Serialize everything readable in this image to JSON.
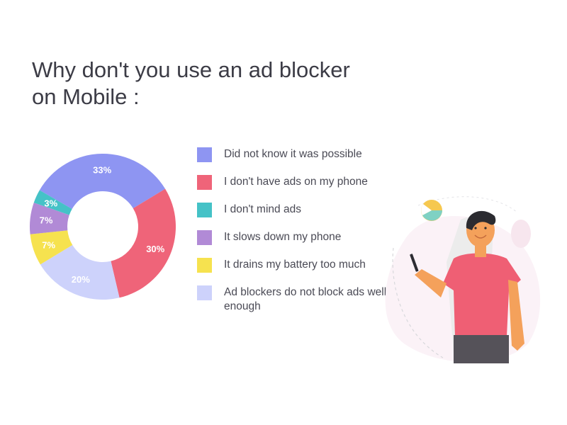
{
  "title": {
    "line1": "Why don't you use an ad blocker",
    "line2": "on Mobile :"
  },
  "chart_data": {
    "type": "pie",
    "donut": true,
    "labels": [
      "Did not know it was possible",
      "I don't have ads on my phone",
      "I don't mind ads",
      "It slows down my phone",
      "It drains my battery too much",
      "Ad blockers do not block ads well enough"
    ],
    "values": [
      33,
      30,
      3,
      7,
      7,
      20
    ],
    "value_labels": [
      "33%",
      "30%",
      "3%",
      "7%",
      "7%",
      "20%"
    ],
    "colors": [
      "#8e95f2",
      "#ef6479",
      "#45c2c7",
      "#b18ad6",
      "#f6e24f",
      "#cdd2fb"
    ],
    "legend_position": "right",
    "slice_order_display": [
      0,
      1,
      5,
      4,
      3,
      2
    ]
  },
  "illustration": {
    "description_icon": "man-with-phone-icon"
  }
}
